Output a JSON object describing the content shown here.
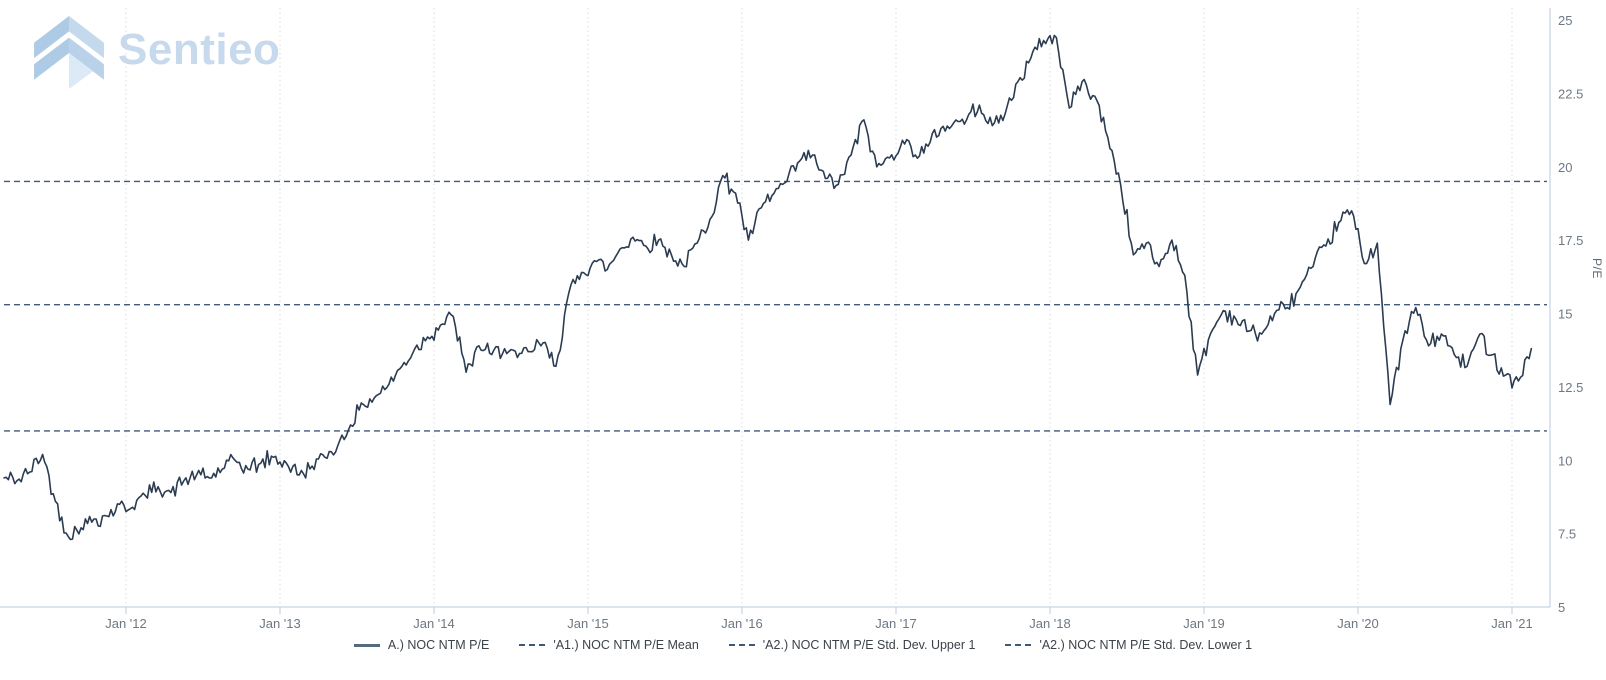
{
  "watermark": {
    "text": "Sentieo"
  },
  "colors": {
    "series_line": "#2b3c51",
    "reference_dashed": "#40597a",
    "axis_line": "#c8d3e4",
    "grid_dotted": "#d9dde3",
    "tick_text": "#6d7884",
    "legend_text": "#3b4248",
    "watermark_blue": "#c7d9ec",
    "logo_dark": "#aecbe5",
    "logo_mid": "#c4d9ec",
    "logo_light": "#dcE9f6"
  },
  "chart_data": {
    "type": "line",
    "title": "",
    "xlabel": "",
    "ylabel": "P/E",
    "ylim": [
      5,
      25
    ],
    "y_ticks": [
      5,
      7.5,
      10,
      12.5,
      15,
      17.5,
      20,
      22.5,
      25
    ],
    "x_ticks": [
      "Jan '12",
      "Jan '13",
      "Jan '14",
      "Jan '15",
      "Jan '16",
      "Jan '17",
      "Jan '18",
      "Jan '19",
      "Jan '20",
      "Jan '21"
    ],
    "grid": "vertical-dotted-only",
    "legend_position": "bottom-center",
    "series": [
      {
        "name": "A.) NOC NTM P/E",
        "style": "solid",
        "frequency": "monthly",
        "start_date": "2011-03",
        "end_date": "2021-02",
        "values": [
          9.4,
          9.3,
          9.6,
          10.2,
          8.6,
          7.4,
          7.7,
          8.0,
          8.1,
          8.5,
          8.4,
          8.8,
          9.1,
          8.9,
          9.3,
          9.5,
          9.4,
          9.7,
          10.0,
          9.7,
          9.9,
          10.1,
          9.9,
          9.5,
          9.8,
          10.1,
          10.5,
          11.2,
          11.9,
          12.2,
          12.6,
          13.2,
          13.8,
          14.2,
          14.6,
          14.9,
          13.0,
          13.9,
          13.6,
          13.8,
          13.5,
          13.7,
          14.0,
          13.2,
          15.7,
          16.4,
          16.8,
          16.5,
          17.2,
          17.6,
          17.3,
          17.5,
          17.0,
          16.6,
          17.4,
          18.2,
          19.7,
          19.1,
          17.5,
          18.6,
          19.1,
          19.5,
          20.2,
          20.4,
          19.6,
          19.4,
          20.4,
          21.6,
          20.0,
          20.3,
          20.9,
          20.4,
          20.7,
          21.3,
          21.5,
          21.6,
          22.1,
          21.4,
          21.8,
          22.9,
          23.7,
          24.3,
          24.4,
          22.0,
          22.9,
          22.4,
          21.0,
          19.4,
          17.0,
          17.4,
          16.6,
          17.5,
          16.3,
          12.9,
          14.3,
          15.1,
          14.8,
          14.4,
          14.3,
          15.0,
          15.2,
          15.9,
          16.6,
          17.3,
          18.1,
          18.5,
          16.7,
          17.4,
          11.9,
          14.1,
          15.2,
          13.9,
          14.3,
          13.6,
          13.2,
          14.3,
          13.6,
          12.9,
          12.7,
          13.8
        ]
      }
    ],
    "reference_lines": [
      {
        "name": "'A1.) NOC NTM P/E Mean",
        "value": 15.3,
        "style": "dashed"
      },
      {
        "name": "'A2.) NOC NTM P/E Std. Dev. Upper 1",
        "value": 19.5,
        "style": "dashed"
      },
      {
        "name": "'A2.) NOC NTM P/E Std. Dev. Lower 1",
        "value": 11.0,
        "style": "dashed"
      }
    ]
  }
}
